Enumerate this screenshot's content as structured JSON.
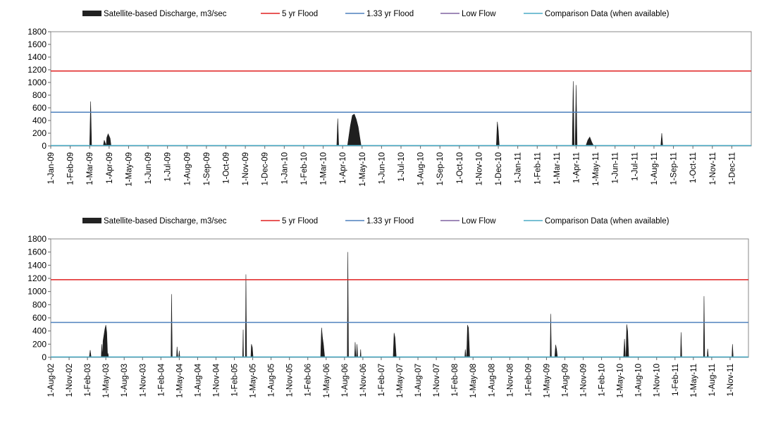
{
  "legend_labels": [
    {
      "label": "Satellite-based Discharge, m3/sec",
      "color": "#222222",
      "kind": "area"
    },
    {
      "label": "5 yr Flood",
      "color": "#e02020",
      "kind": "line"
    },
    {
      "label": "1.33 yr Flood",
      "color": "#4f81bd",
      "kind": "line"
    },
    {
      "label": "Low Flow",
      "color": "#8064a2",
      "kind": "line"
    },
    {
      "label": "Comparison Data (when available)",
      "color": "#4bacc6",
      "kind": "line"
    }
  ],
  "chart_data": [
    {
      "type": "area",
      "legend_position": "top",
      "grid": false,
      "ylim": [
        0,
        1800
      ],
      "yticks": [
        "0",
        "200",
        "400",
        "600",
        "800",
        "1000",
        "1200",
        "1400",
        "1600",
        "1800"
      ],
      "xlabels": [
        "1-Jan-09",
        "1-Feb-09",
        "1-Mar-09",
        "1-Apr-09",
        "1-May-09",
        "1-Jun-09",
        "1-Jul-09",
        "1-Aug-09",
        "1-Sep-09",
        "1-Oct-09",
        "1-Nov-09",
        "1-Dec-09",
        "1-Jan-10",
        "1-Feb-10",
        "1-Mar-10",
        "1-Apr-10",
        "1-May-10",
        "1-Jun-10",
        "1-Jul-10",
        "1-Aug-10",
        "1-Sep-10",
        "1-Oct-10",
        "1-Nov-10",
        "1-Dec-10",
        "1-Jan-11",
        "1-Feb-11",
        "1-Mar-11",
        "1-Apr-11",
        "1-May-11",
        "1-Jun-11",
        "1-Jul-11",
        "1-Aug-11",
        "1-Sep-11",
        "1-Oct-11",
        "1-Nov-11",
        "1-Dec-11"
      ],
      "flood_5yr": 1180,
      "flood_133yr": 530,
      "low_flow": 5,
      "series": [
        {
          "name": "Satellite-based Discharge, m3/sec",
          "points": [
            [
              2.0,
              0
            ],
            [
              2.05,
              700
            ],
            [
              2.1,
              0
            ],
            [
              2.7,
              0
            ],
            [
              2.75,
              90
            ],
            [
              2.85,
              0
            ],
            [
              2.88,
              130
            ],
            [
              2.95,
              190
            ],
            [
              3.05,
              120
            ],
            [
              3.1,
              0
            ],
            [
              14.7,
              0
            ],
            [
              14.75,
              430
            ],
            [
              14.8,
              0
            ],
            [
              15.25,
              0
            ],
            [
              15.4,
              320
            ],
            [
              15.5,
              480
            ],
            [
              15.6,
              500
            ],
            [
              15.7,
              420
            ],
            [
              15.8,
              300
            ],
            [
              15.95,
              0
            ],
            [
              22.9,
              0
            ],
            [
              22.95,
              380
            ],
            [
              23.0,
              240
            ],
            [
              23.05,
              0
            ],
            [
              26.8,
              0
            ],
            [
              26.85,
              1020
            ],
            [
              26.9,
              0
            ],
            [
              26.95,
              0
            ],
            [
              27.0,
              960
            ],
            [
              27.05,
              0
            ],
            [
              27.5,
              0
            ],
            [
              27.6,
              90
            ],
            [
              27.7,
              140
            ],
            [
              27.8,
              60
            ],
            [
              27.9,
              0
            ],
            [
              31.35,
              0
            ],
            [
              31.4,
              200
            ],
            [
              31.45,
              0
            ]
          ]
        }
      ]
    },
    {
      "type": "area",
      "legend_position": "top",
      "grid": false,
      "ylim": [
        0,
        1800
      ],
      "yticks": [
        "0",
        "200",
        "400",
        "600",
        "800",
        "1000",
        "1200",
        "1400",
        "1600",
        "1800"
      ],
      "xlabels": [
        "1-Aug-02",
        "1-Nov-02",
        "1-Feb-03",
        "1-May-03",
        "1-Aug-03",
        "1-Nov-03",
        "1-Feb-04",
        "1-May-04",
        "1-Aug-04",
        "1-Nov-04",
        "1-Feb-05",
        "1-May-05",
        "1-Aug-05",
        "1-Nov-05",
        "1-Feb-06",
        "1-May-06",
        "1-Aug-06",
        "1-Nov-06",
        "1-Feb-07",
        "1-May-07",
        "1-Aug-07",
        "1-Nov-07",
        "1-Feb-08",
        "1-May-08",
        "1-Aug-08",
        "1-Nov-08",
        "1-Feb-09",
        "1-May-09",
        "1-Aug-09",
        "1-Nov-09",
        "1-Feb-10",
        "1-May-10",
        "1-Aug-10",
        "1-Nov-10",
        "1-Feb-11",
        "1-May-11",
        "1-Aug-11",
        "1-Nov-11"
      ],
      "flood_5yr": 1180,
      "flood_133yr": 530,
      "low_flow": 5,
      "series": [
        {
          "name": "Satellite-based Discharge, m3/sec",
          "points": [
            [
              2.1,
              0
            ],
            [
              2.15,
              110
            ],
            [
              2.2,
              0
            ],
            [
              2.75,
              0
            ],
            [
              2.78,
              200
            ],
            [
              2.82,
              0
            ],
            [
              2.85,
              250
            ],
            [
              2.95,
              430
            ],
            [
              3.0,
              490
            ],
            [
              3.05,
              380
            ],
            [
              3.1,
              0
            ],
            [
              3.12,
              60
            ],
            [
              3.15,
              0
            ],
            [
              6.55,
              0
            ],
            [
              6.58,
              960
            ],
            [
              6.62,
              0
            ],
            [
              6.85,
              0
            ],
            [
              6.88,
              160
            ],
            [
              6.92,
              0
            ],
            [
              6.97,
              0
            ],
            [
              7.0,
              100
            ],
            [
              7.03,
              0
            ],
            [
              10.45,
              0
            ],
            [
              10.48,
              420
            ],
            [
              10.5,
              0
            ],
            [
              10.6,
              0
            ],
            [
              10.63,
              1260
            ],
            [
              10.67,
              0
            ],
            [
              10.9,
              0
            ],
            [
              10.93,
              200
            ],
            [
              10.98,
              150
            ],
            [
              11.02,
              0
            ],
            [
              14.7,
              0
            ],
            [
              14.75,
              450
            ],
            [
              14.8,
              300
            ],
            [
              14.85,
              200
            ],
            [
              14.92,
              0
            ],
            [
              16.15,
              0
            ],
            [
              16.18,
              1600
            ],
            [
              16.22,
              0
            ],
            [
              16.55,
              0
            ],
            [
              16.58,
              230
            ],
            [
              16.62,
              0
            ],
            [
              16.65,
              0
            ],
            [
              16.68,
              200
            ],
            [
              16.72,
              0
            ],
            [
              16.85,
              0
            ],
            [
              16.88,
              120
            ],
            [
              16.9,
              0
            ],
            [
              18.65,
              0
            ],
            [
              18.7,
              370
            ],
            [
              18.75,
              300
            ],
            [
              18.82,
              0
            ],
            [
              22.55,
              0
            ],
            [
              22.58,
              120
            ],
            [
              22.62,
              0
            ],
            [
              22.65,
              0
            ],
            [
              22.7,
              490
            ],
            [
              22.75,
              450
            ],
            [
              22.82,
              0
            ],
            [
              27.2,
              0
            ],
            [
              27.23,
              660
            ],
            [
              27.27,
              0
            ],
            [
              27.45,
              0
            ],
            [
              27.5,
              190
            ],
            [
              27.55,
              120
            ],
            [
              27.6,
              0
            ],
            [
              31.2,
              0
            ],
            [
              31.25,
              280
            ],
            [
              31.3,
              0
            ],
            [
              31.33,
              0
            ],
            [
              31.37,
              500
            ],
            [
              31.42,
              400
            ],
            [
              31.48,
              0
            ],
            [
              34.3,
              0
            ],
            [
              34.33,
              380
            ],
            [
              34.37,
              0
            ],
            [
              35.55,
              0
            ],
            [
              35.58,
              930
            ],
            [
              35.62,
              0
            ],
            [
              35.75,
              0
            ],
            [
              35.78,
              130
            ],
            [
              35.82,
              0
            ],
            [
              37.1,
              0
            ],
            [
              37.13,
              200
            ],
            [
              37.17,
              0
            ]
          ]
        }
      ]
    }
  ]
}
